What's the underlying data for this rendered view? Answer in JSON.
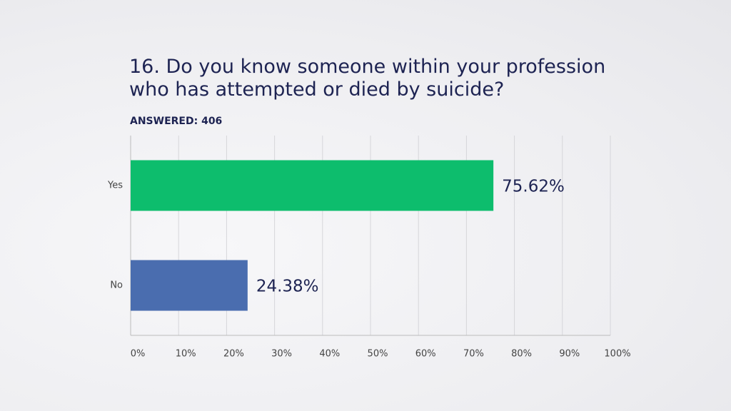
{
  "chart_data": {
    "type": "hbar",
    "title": "16. Do you know someone within your profession who has attempted or died by suicide?",
    "subtitle": "ANSWERED: 406",
    "categories": [
      "Yes",
      "No"
    ],
    "values": [
      75.62,
      24.38
    ],
    "value_labels": [
      "75.62%",
      "24.38%"
    ],
    "colors": [
      "#0dbd6d",
      "#4a6daf"
    ],
    "xlim": [
      0,
      100
    ],
    "xticks": [
      {
        "value": 0,
        "label": "0%"
      },
      {
        "value": 10,
        "label": "10%"
      },
      {
        "value": 20,
        "label": "20%"
      },
      {
        "value": 30,
        "label": "30%"
      },
      {
        "value": 40,
        "label": "40%"
      },
      {
        "value": 50,
        "label": "50%"
      },
      {
        "value": 60,
        "label": "60%"
      },
      {
        "value": 70,
        "label": "70%"
      },
      {
        "value": 80,
        "label": "80%"
      },
      {
        "value": 90,
        "label": "90%"
      },
      {
        "value": 100,
        "label": "100%"
      }
    ],
    "grid": true
  }
}
